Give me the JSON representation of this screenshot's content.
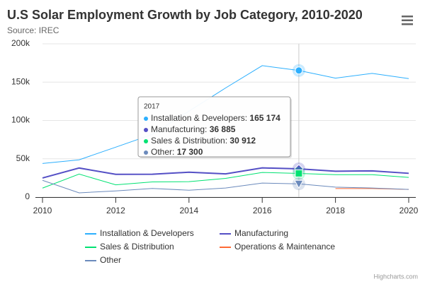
{
  "chart_data": {
    "type": "line",
    "title": "U.S Solar Employment Growth by Job Category, 2010-2020",
    "subtitle": "Source: IREC",
    "x": [
      2010,
      2011,
      2012,
      2013,
      2014,
      2015,
      2016,
      2017,
      2018,
      2019,
      2020
    ],
    "series": [
      {
        "name": "Installation & Developers",
        "color": "#2caffe",
        "values": [
          43934,
          48656,
          65165,
          81827,
          112143,
          142383,
          171533,
          165174,
          155157,
          161454,
          154610
        ]
      },
      {
        "name": "Manufacturing",
        "color": "#544fc5",
        "values": [
          24916,
          37941,
          29742,
          29851,
          32490,
          30282,
          38121,
          36885,
          33726,
          34243,
          31050
        ]
      },
      {
        "name": "Sales & Distribution",
        "color": "#00e272",
        "values": [
          11744,
          30000,
          16005,
          19771,
          20185,
          24377,
          32147,
          30912,
          29243,
          29213,
          25663
        ]
      },
      {
        "name": "Operations & Maintenance",
        "color": "#fe6a35",
        "values": [
          null,
          null,
          null,
          null,
          null,
          null,
          null,
          null,
          11164,
          11218,
          10077
        ]
      },
      {
        "name": "Other",
        "color": "#6b8abc",
        "values": [
          21908,
          5548,
          8105,
          11248,
          8989,
          11816,
          18274,
          17300,
          13053,
          11906,
          10073
        ]
      }
    ],
    "xlim": [
      2010,
      2020
    ],
    "xticks": [
      2010,
      2012,
      2014,
      2016,
      2018,
      2020
    ],
    "ylim": [
      0,
      200000
    ],
    "yticks": [
      {
        "value": 0,
        "label": "0"
      },
      {
        "value": 50000,
        "label": "50k"
      },
      {
        "value": 100000,
        "label": "100k"
      },
      {
        "value": 150000,
        "label": "150k"
      },
      {
        "value": 200000,
        "label": "200k"
      }
    ],
    "grid": true,
    "legend": "bottom",
    "tooltip": {
      "index": 7,
      "series": [
        0,
        1,
        2,
        4
      ],
      "value_labels": [
        "165 174",
        "36 885",
        "30 912",
        "17 300"
      ]
    },
    "credits": "Highcharts.com"
  }
}
